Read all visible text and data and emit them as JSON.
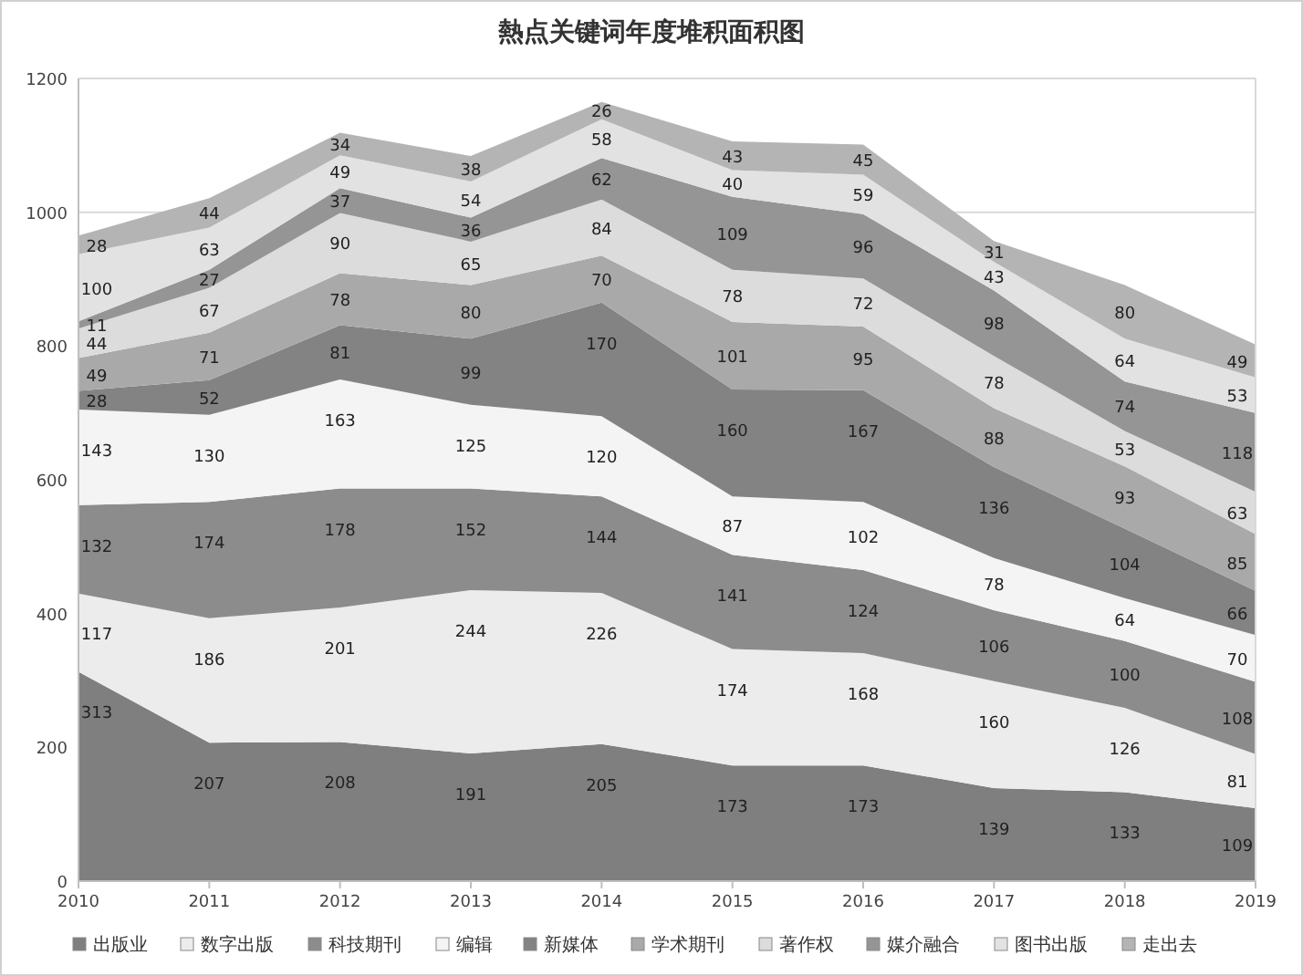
{
  "chart_data": {
    "type": "area",
    "stacked": true,
    "title": "熱点关键词年度堆积面积图",
    "x": [
      2010,
      2011,
      2012,
      2013,
      2014,
      2015,
      2016,
      2017,
      2018,
      2019
    ],
    "xlim": [
      2010,
      2019
    ],
    "xticks": [
      2010,
      2011,
      2012,
      2013,
      2014,
      2015,
      2016,
      2017,
      2018,
      2019
    ],
    "ylim": [
      0,
      1200
    ],
    "yticks": [
      0,
      200,
      400,
      600,
      800,
      1000,
      1200
    ],
    "grid": "y",
    "legend": "bottom",
    "data_labels": true,
    "series": [
      {
        "name": "出版业",
        "color": "#7f7f7f",
        "values": [
          313,
          207,
          208,
          191,
          205,
          173,
          173,
          139,
          133,
          109
        ]
      },
      {
        "name": "数字出版",
        "color": "#ececec",
        "values": [
          117,
          186,
          201,
          244,
          226,
          174,
          168,
          160,
          126,
          81
        ]
      },
      {
        "name": "科技期刊",
        "color": "#8c8c8c",
        "values": [
          132,
          174,
          178,
          152,
          144,
          141,
          124,
          106,
          100,
          108
        ]
      },
      {
        "name": "编辑",
        "color": "#f4f4f4",
        "values": [
          143,
          130,
          163,
          125,
          120,
          87,
          102,
          78,
          64,
          70
        ]
      },
      {
        "name": "新媒体",
        "color": "#838383",
        "values": [
          28,
          52,
          81,
          99,
          170,
          160,
          167,
          136,
          104,
          66
        ]
      },
      {
        "name": "学术期刊",
        "color": "#a9a9a9",
        "values": [
          49,
          71,
          78,
          80,
          70,
          101,
          95,
          88,
          93,
          85
        ]
      },
      {
        "name": "著作权",
        "color": "#dcdcdc",
        "values": [
          44,
          67,
          90,
          65,
          84,
          78,
          72,
          78,
          53,
          63
        ]
      },
      {
        "name": "媒介融合",
        "color": "#959595",
        "values": [
          11,
          27,
          37,
          36,
          62,
          109,
          96,
          98,
          74,
          118
        ]
      },
      {
        "name": "图书出版",
        "color": "#e2e2e2",
        "values": [
          100,
          63,
          49,
          54,
          58,
          40,
          59,
          43,
          64,
          53
        ]
      },
      {
        "name": "走出去",
        "color": "#b4b4b4",
        "values": [
          28,
          44,
          34,
          38,
          26,
          43,
          45,
          31,
          80,
          49
        ]
      }
    ]
  }
}
